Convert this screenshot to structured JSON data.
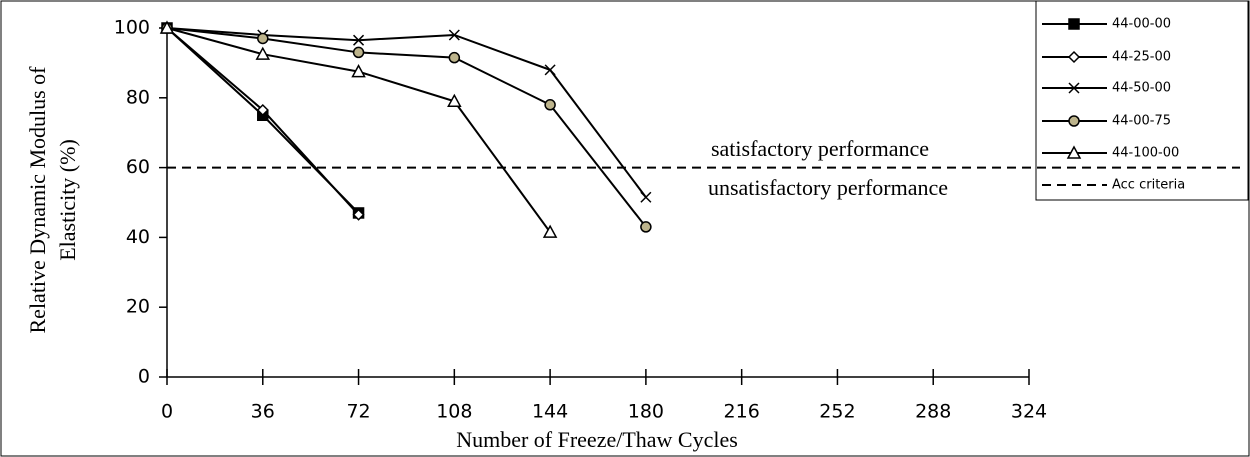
{
  "chart_data": {
    "type": "line",
    "x_label": "Number of Freeze/Thaw Cycles",
    "y_label": [
      "Relative Dynamic  Modulus of",
      "Elasticity (%)"
    ],
    "xlim": [
      0,
      324
    ],
    "xticks": [
      0,
      36,
      72,
      108,
      144,
      180,
      216,
      252,
      288,
      324
    ],
    "ylim": [
      0,
      100
    ],
    "yticks": [
      0,
      20,
      40,
      60,
      80,
      100
    ],
    "series": [
      {
        "name": "44-00-00",
        "color": "#000000",
        "marker": "square",
        "x": [
          0,
          36,
          72
        ],
        "values": [
          100,
          75,
          47
        ]
      },
      {
        "name": "44-25-00",
        "color": "#000000",
        "marker": "diamond",
        "x": [
          0,
          36,
          72
        ],
        "values": [
          100,
          76.5,
          46.5
        ]
      },
      {
        "name": "44-50-00",
        "color": "#000000",
        "marker": "cross",
        "x": [
          0,
          36,
          72,
          108,
          144,
          180
        ],
        "values": [
          100,
          98,
          96.5,
          98,
          88,
          51.5
        ]
      },
      {
        "name": "44-00-75",
        "color": "#000000",
        "marker": "circle",
        "x": [
          0,
          36,
          72,
          108,
          144,
          180
        ],
        "values": [
          100,
          97,
          93,
          91.5,
          78,
          43
        ]
      },
      {
        "name": "44-100-00",
        "color": "#000000",
        "marker": "triangle",
        "x": [
          0,
          36,
          72,
          108,
          144
        ],
        "values": [
          100,
          92.5,
          87.5,
          79,
          41.5
        ]
      }
    ],
    "reference_line": {
      "name": "Acc criteria",
      "value": 60,
      "color": "#000000"
    },
    "annotations": [
      "satisfactory performance",
      "unsatisfactory performance"
    ]
  }
}
